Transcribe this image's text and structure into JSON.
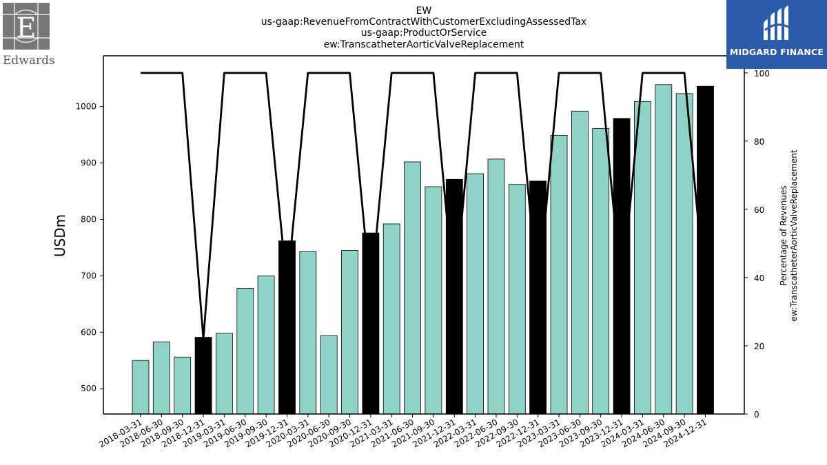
{
  "header": {
    "title_lines": [
      "EW",
      "us-gaap:RevenueFromContractWithCustomerExcludingAssessedTax",
      "us-gaap:ProductOrService",
      "ew:TranscatheterAorticValveReplacement"
    ]
  },
  "logos": {
    "left_text": "Edwards",
    "right_text": "MIDGARD FINANCE",
    "right_bg_color": "#2a5caa"
  },
  "chart_data": {
    "type": "bar",
    "categories": [
      "2018-03-31",
      "2018-06-30",
      "2018-09-30",
      "2018-12-31",
      "2019-03-31",
      "2019-06-30",
      "2019-09-30",
      "2019-12-31",
      "2020-03-31",
      "2020-06-30",
      "2020-09-30",
      "2020-12-31",
      "2021-03-31",
      "2021-06-30",
      "2021-09-30",
      "2021-12-31",
      "2022-03-31",
      "2022-06-30",
      "2022-09-30",
      "2022-12-31",
      "2023-03-31",
      "2023-06-30",
      "2023-09-30",
      "2023-12-31",
      "2024-03-31",
      "2024-06-30",
      "2024-09-30",
      "2024-12-31"
    ],
    "values": [
      550,
      583,
      556,
      591,
      598,
      678,
      700,
      762,
      743,
      594,
      745,
      776,
      792,
      902,
      858,
      871,
      881,
      907,
      862,
      868,
      949,
      992,
      961,
      979,
      1009,
      1039,
      1023,
      1036
    ],
    "bar_kinds": [
      "q",
      "q",
      "q",
      "fy",
      "q",
      "q",
      "q",
      "fy",
      "q",
      "q",
      "q",
      "fy",
      "q",
      "q",
      "q",
      "fy",
      "q",
      "q",
      "q",
      "fy",
      "q",
      "q",
      "q",
      "fy",
      "q",
      "q",
      "q",
      "fy"
    ],
    "bar_colors": {
      "q": "#8ed3c6",
      "fy": "#000000"
    },
    "ylabel": "USDm",
    "ylim": [
      455,
      1090
    ],
    "yticks": [
      500,
      600,
      700,
      800,
      900,
      1000
    ],
    "secondary": {
      "type": "line",
      "ylabel_lines": [
        "Percentage of Revenues",
        "ew:TranscatheterAorticValveReplacement"
      ],
      "values": [
        100,
        100,
        100,
        22,
        100,
        100,
        100,
        37,
        100,
        100,
        100,
        35,
        100,
        100,
        100,
        34,
        100,
        100,
        100,
        35,
        100,
        100,
        100,
        35,
        100,
        100,
        100,
        34
      ],
      "ylim": [
        0,
        105
      ],
      "yticks": [
        0,
        20,
        40,
        60,
        80,
        100
      ],
      "color": "#000000"
    },
    "grid": false
  }
}
